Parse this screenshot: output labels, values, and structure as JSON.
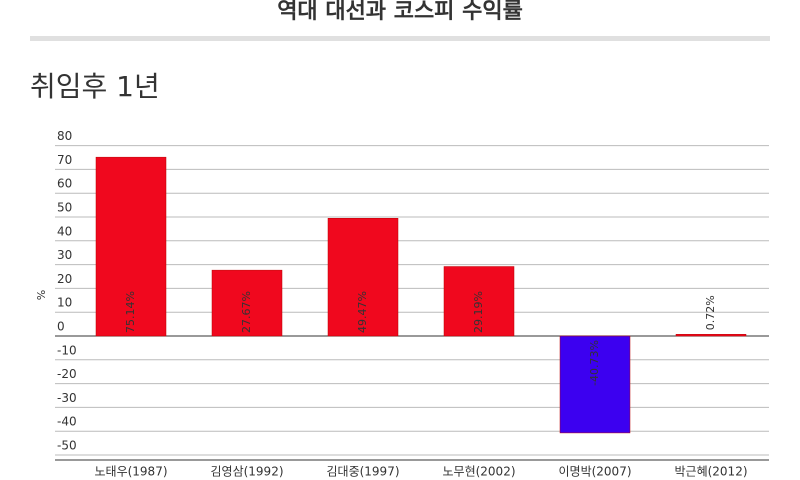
{
  "chart_data": {
    "type": "bar",
    "title": "역대 대선과 코스피 수익률",
    "subtitle": "취임후 1년",
    "y_label": "%",
    "categories": [
      "노태우(1987)",
      "김영삼(1992)",
      "김대중(1997)",
      "노무현(2002)",
      "이명박(2007)",
      "박근혜(2012)"
    ],
    "values": [
      75.14,
      27.67,
      49.47,
      29.19,
      -40.73,
      0.72
    ],
    "value_labels": [
      "75.14%",
      "27.67%",
      "49.47%",
      "29.19%",
      "-40.73%",
      "0.72%"
    ],
    "colors": [
      "#f0081e",
      "#f0081e",
      "#f0081e",
      "#f0081e",
      "#3c00f0",
      "#f0081e"
    ],
    "ylim": [
      -50,
      80
    ],
    "yticks": [
      80,
      70,
      60,
      50,
      40,
      30,
      20,
      10,
      0,
      -10,
      -20,
      -30,
      -40,
      -50
    ],
    "grid": true
  }
}
